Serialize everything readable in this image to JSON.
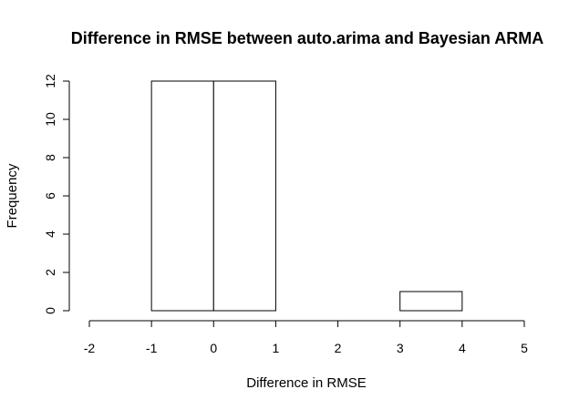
{
  "chart_data": {
    "type": "bar",
    "title": "Difference in RMSE between auto.arima and Bayesian ARMA",
    "xlabel": "Difference in RMSE",
    "ylabel": "Frequency",
    "bins": [
      {
        "start": -2,
        "end": -1,
        "count": 0
      },
      {
        "start": -1,
        "end": 0,
        "count": 12
      },
      {
        "start": 0,
        "end": 1,
        "count": 12
      },
      {
        "start": 1,
        "end": 2,
        "count": 0
      },
      {
        "start": 2,
        "end": 3,
        "count": 0
      },
      {
        "start": 3,
        "end": 4,
        "count": 1
      },
      {
        "start": 4,
        "end": 5,
        "count": 0
      }
    ],
    "x_ticks": [
      "-2",
      "-1",
      "0",
      "1",
      "2",
      "3",
      "4",
      "5"
    ],
    "y_ticks": [
      "0",
      "2",
      "4",
      "6",
      "8",
      "10",
      "12"
    ],
    "xlim": [
      -2,
      5
    ],
    "ylim": [
      0,
      12
    ],
    "grid": false,
    "colors": {
      "bar_fill": "#ffffff",
      "bar_stroke": "#000000"
    }
  }
}
